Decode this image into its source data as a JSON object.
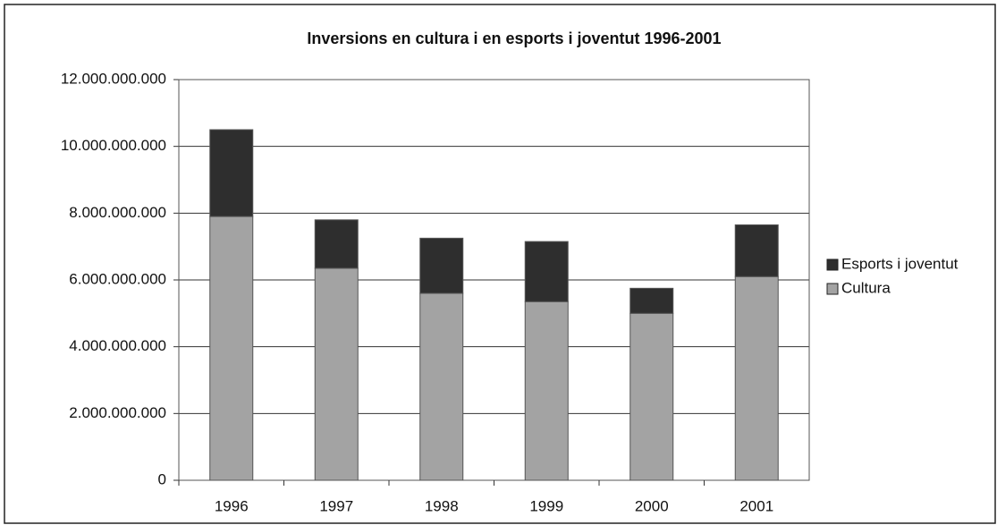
{
  "chart_data": {
    "type": "stacked_bar",
    "title": "Inversions en cultura i en esports i joventut 1996-2001",
    "categories": [
      "1996",
      "1997",
      "1998",
      "1999",
      "2000",
      "2001"
    ],
    "series": [
      {
        "name": "Cultura",
        "color": "#a3a3a3",
        "values": [
          7900000000,
          6350000000,
          5600000000,
          5350000000,
          5000000000,
          6100000000
        ]
      },
      {
        "name": "Esports i joventut",
        "color": "#2e2e2e",
        "values": [
          2600000000,
          1450000000,
          1650000000,
          1800000000,
          750000000,
          1550000000
        ]
      }
    ],
    "ylim": [
      0,
      12000000000
    ],
    "yticks": [
      0,
      {
        "value": 2000000000,
        "label": "2.000.000.000"
      },
      {
        "value": 4000000000,
        "label": "4.000.000.000"
      },
      {
        "value": 6000000000,
        "label": "6.000.000.000"
      },
      {
        "value": 8000000000,
        "label": "8.000.000.000"
      },
      {
        "value": 10000000000,
        "label": "10.000.000.000"
      },
      {
        "value": 12000000000,
        "label": "12.000.000.000"
      }
    ],
    "grid": true,
    "legend": "right"
  }
}
